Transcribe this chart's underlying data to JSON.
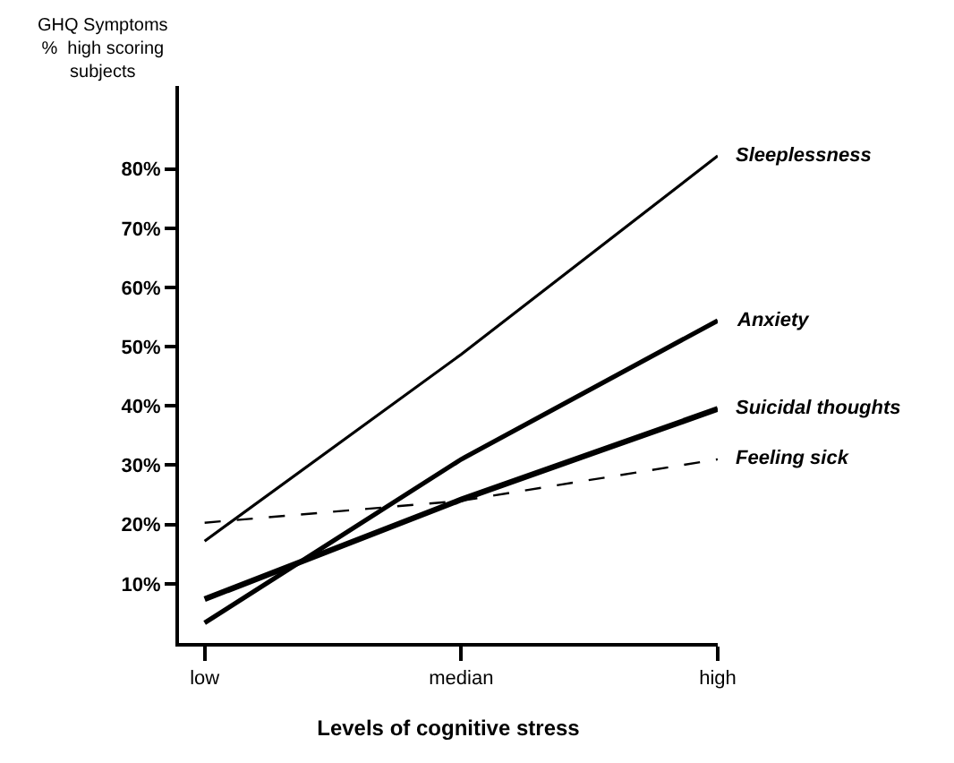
{
  "chart_data": {
    "type": "line",
    "xlabel": "Levels of cognitive stress",
    "ylabel": "GHQ Symptoms\n%  high scoring\nsubjects",
    "categories": [
      "low",
      "median",
      "high"
    ],
    "series": [
      {
        "name": "Sleeplessness",
        "color": "#000000",
        "values": [
          17.2,
          48.7,
          82.2
        ],
        "line_style": "solid"
      },
      {
        "name": "Anxiety",
        "color": "#000000",
        "values": [
          3.4,
          31,
          54.4
        ],
        "line_style": "solid"
      },
      {
        "name": "Suicidal thoughts",
        "color": "#000000",
        "values": [
          7.4,
          24.2,
          39.5
        ],
        "line_style": "solid"
      },
      {
        "name": "Feeling sick",
        "color": "#000000",
        "values": [
          20.3,
          24,
          31
        ],
        "line_style": "dashed"
      }
    ],
    "ylim": [
      0,
      94
    ],
    "yticks": [
      {
        "value": 10,
        "label": "10%"
      },
      {
        "value": 20,
        "label": "20%"
      },
      {
        "value": 30,
        "label": "30%"
      },
      {
        "value": 40,
        "label": "40%"
      },
      {
        "value": 50,
        "label": "50%"
      },
      {
        "value": 60,
        "label": "60%"
      },
      {
        "value": 70,
        "label": "70%"
      },
      {
        "value": 80,
        "label": "80%"
      }
    ],
    "legend": false,
    "marker": "none"
  }
}
